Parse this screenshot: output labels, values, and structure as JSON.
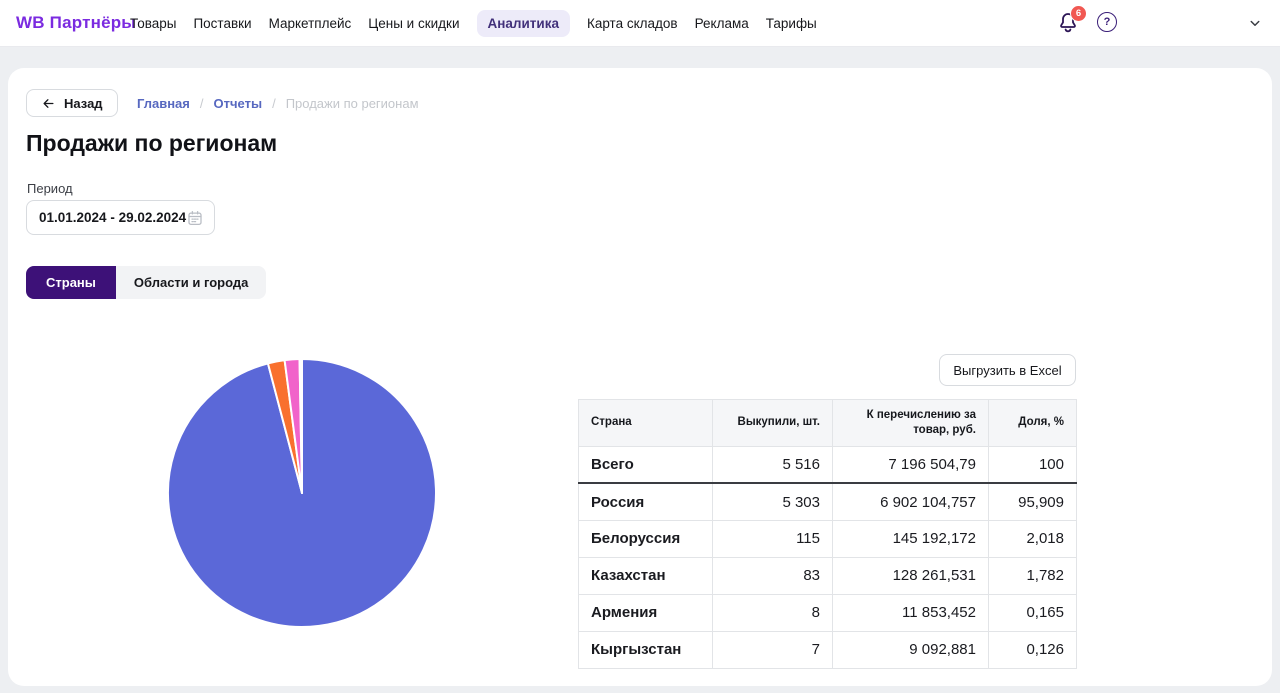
{
  "nav": {
    "logo": "WB Партнёры",
    "items": [
      {
        "label": "Товары",
        "active": false
      },
      {
        "label": "Поставки",
        "active": false
      },
      {
        "label": "Маркетплейс",
        "active": false
      },
      {
        "label": "Цены и скидки",
        "active": false
      },
      {
        "label": "Аналитика",
        "active": true
      },
      {
        "label": "Карта складов",
        "active": false
      },
      {
        "label": "Реклама",
        "active": false
      },
      {
        "label": "Тарифы",
        "active": false
      }
    ],
    "notification_badge": "6"
  },
  "breadcrumb": {
    "back_label": "Назад",
    "separator": "/",
    "items": [
      {
        "label": "Главная",
        "current": false
      },
      {
        "label": "Отчеты",
        "current": false
      },
      {
        "label": "Продажи по регионам",
        "current": true
      }
    ]
  },
  "page": {
    "title": "Продажи по регионам"
  },
  "filters": {
    "period_label": "Период",
    "period_value": "01.01.2024 - 29.02.2024"
  },
  "tabs": [
    {
      "label": "Страны",
      "active": true
    },
    {
      "label": "Области и города",
      "active": false
    }
  ],
  "actions": {
    "export_excel": "Выгрузить в Excel"
  },
  "table": {
    "columns": [
      "Страна",
      "Выкупили, шт.",
      "К перечислению за товар, руб.",
      "Доля, %"
    ],
    "rows": [
      [
        "Всего",
        "5 516",
        "7 196 504,79",
        "100"
      ],
      [
        "Россия",
        "5 303",
        "6 902 104,757",
        "95,909"
      ],
      [
        "Белоруссия",
        "115",
        "145 192,172",
        "2,018"
      ],
      [
        "Казахстан",
        "83",
        "128 261,531",
        "1,782"
      ],
      [
        "Армения",
        "8",
        "11 853,452",
        "0,165"
      ],
      [
        "Кыргызстан",
        "7",
        "9 092,881",
        "0,126"
      ]
    ]
  },
  "chart_data": {
    "type": "pie",
    "labels": [
      "Россия",
      "Белоруссия",
      "Казахстан",
      "Армения",
      "Кыргызстан"
    ],
    "values": [
      95.909,
      2.018,
      1.782,
      0.165,
      0.126
    ],
    "unit": "%",
    "colors": [
      "#5b68d8",
      "#f9702e",
      "#f163ca",
      "#35c4b5",
      "#f7c948"
    ],
    "start_angle_deg": -90,
    "direction": "clockwise",
    "legend": "none",
    "slice_border_color": "#ffffff",
    "title": ""
  },
  "icons": {
    "bell-icon": "bell outline",
    "question-icon": "circled ?",
    "chevron-down-icon": "⌄",
    "back-arrow-icon": "←",
    "calendar-icon": "calendar glyph"
  },
  "colors": {
    "brand_purple": "#7b2be0",
    "nav_pill_bg": "#edebf9",
    "active_tab_purple": "#3d1178",
    "link_blue": "#5768c0",
    "badge_red": "#f15852",
    "page_bg": "#edeff2",
    "table_header_bg": "#f5f6f8"
  }
}
